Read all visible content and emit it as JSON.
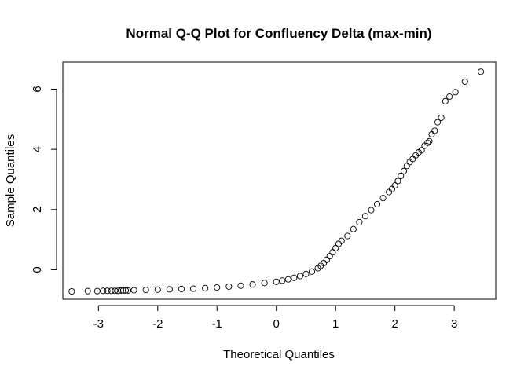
{
  "chart_data": {
    "type": "scatter",
    "title": "Normal Q-Q Plot for Confluency Delta (max-min)",
    "xlabel": "Theoretical Quantiles",
    "ylabel": "Sample Quantiles",
    "xlim": [
      -3.6,
      3.7
    ],
    "ylim": [
      -0.98,
      6.9
    ],
    "x_ticks": [
      -3,
      -2,
      -1,
      0,
      1,
      2,
      3
    ],
    "y_ticks": [
      0,
      2,
      4,
      6
    ],
    "x_tick_labels": [
      "-3",
      "-2",
      "-1",
      "0",
      "1",
      "2",
      "3"
    ],
    "y_tick_labels": [
      "0",
      "2",
      "4",
      "6"
    ],
    "marker": "open-circle",
    "series": [
      {
        "name": "sample",
        "x": [
          -3.45,
          -3.18,
          -3.02,
          -2.92,
          -2.85,
          -2.78,
          -2.72,
          -2.67,
          -2.62,
          -2.58,
          -2.54,
          -2.5,
          -2.4,
          -2.2,
          -2.0,
          -1.8,
          -1.6,
          -1.4,
          -1.2,
          -1.0,
          -0.8,
          -0.6,
          -0.4,
          -0.2,
          0.0,
          0.1,
          0.2,
          0.3,
          0.4,
          0.5,
          0.6,
          0.7,
          0.75,
          0.8,
          0.85,
          0.9,
          0.95,
          1.0,
          1.05,
          1.1,
          1.2,
          1.3,
          1.4,
          1.5,
          1.6,
          1.7,
          1.8,
          1.9,
          1.95,
          2.0,
          2.05,
          2.1,
          2.15,
          2.2,
          2.25,
          2.3,
          2.35,
          2.4,
          2.45,
          2.5,
          2.55,
          2.58,
          2.62,
          2.67,
          2.72,
          2.78,
          2.85,
          2.92,
          3.02,
          3.18,
          3.45
        ],
        "y": [
          -0.72,
          -0.71,
          -0.71,
          -0.7,
          -0.7,
          -0.7,
          -0.7,
          -0.7,
          -0.69,
          -0.69,
          -0.69,
          -0.69,
          -0.68,
          -0.67,
          -0.66,
          -0.65,
          -0.64,
          -0.63,
          -0.61,
          -0.59,
          -0.56,
          -0.53,
          -0.49,
          -0.44,
          -0.4,
          -0.36,
          -0.32,
          -0.27,
          -0.21,
          -0.14,
          -0.06,
          0.05,
          0.13,
          0.22,
          0.33,
          0.45,
          0.58,
          0.72,
          0.86,
          0.96,
          1.12,
          1.35,
          1.58,
          1.78,
          1.98,
          2.18,
          2.38,
          2.58,
          2.68,
          2.8,
          2.95,
          3.12,
          3.28,
          3.45,
          3.58,
          3.68,
          3.8,
          3.9,
          3.97,
          4.12,
          4.22,
          4.27,
          4.5,
          4.62,
          4.9,
          5.05,
          5.6,
          5.75,
          5.9,
          6.25,
          6.58
        ]
      }
    ]
  }
}
